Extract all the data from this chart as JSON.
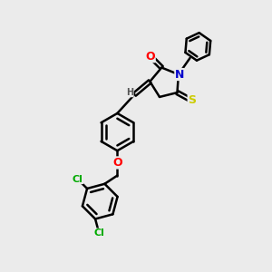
{
  "bg_color": "#ebebeb",
  "bond_color": "#000000",
  "bond_width": 1.8,
  "dbo": 0.08,
  "atom_colors": {
    "O": "#ff0000",
    "N": "#0000cc",
    "S": "#cccc00",
    "Cl": "#00aa00",
    "H": "#444444"
  },
  "afs": 9,
  "sfs": 8
}
